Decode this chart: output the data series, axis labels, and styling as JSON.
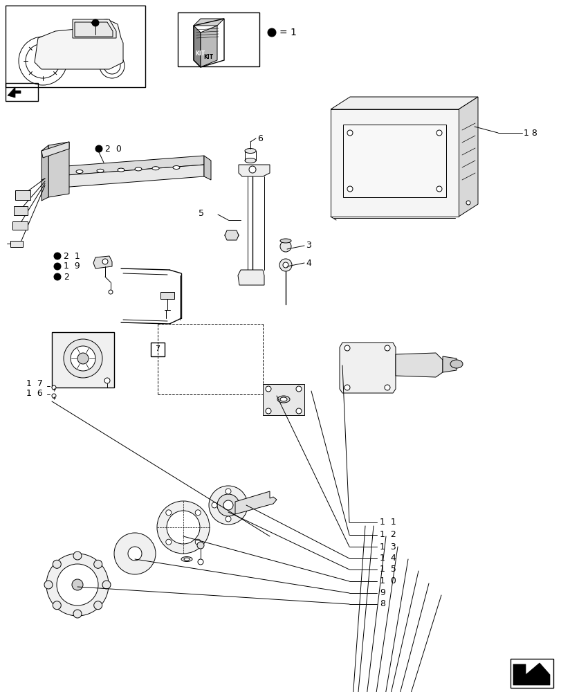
{
  "bg_color": "#ffffff",
  "lc": "#000000",
  "figsize": [
    8.12,
    10.0
  ],
  "dpi": 100,
  "lw_thin": 0.7,
  "lw_med": 1.0,
  "lw_thick": 1.4
}
